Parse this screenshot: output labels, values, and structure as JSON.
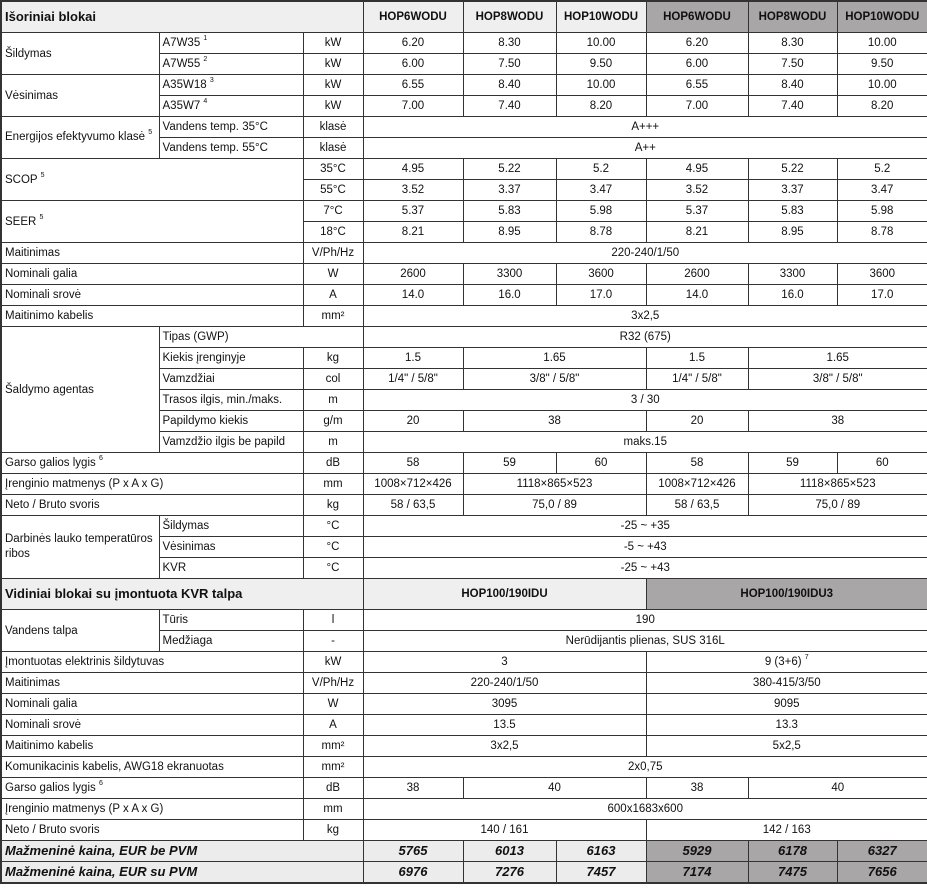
{
  "outdoor": {
    "title": "Išoriniai blokai",
    "models": [
      "HOP6WODU",
      "HOP8WODU",
      "HOP10WODU",
      "HOP6WODU",
      "HOP8WODU",
      "HOP10WODU"
    ],
    "heating": {
      "label": "Šildymas",
      "rows": [
        {
          "cond": "A7W35",
          "note": "1",
          "unit": "kW",
          "values": [
            "6.20",
            "8.30",
            "10.00",
            "6.20",
            "8.30",
            "10.00"
          ]
        },
        {
          "cond": "A7W55",
          "note": "2",
          "unit": "kW",
          "values": [
            "6.00",
            "7.50",
            "9.50",
            "6.00",
            "7.50",
            "9.50"
          ]
        }
      ]
    },
    "cooling": {
      "label": "Vėsinimas",
      "rows": [
        {
          "cond": "A35W18",
          "note": "3",
          "unit": "kW",
          "values": [
            "6.55",
            "8.40",
            "10.00",
            "6.55",
            "8.40",
            "10.00"
          ]
        },
        {
          "cond": "A35W7",
          "note": "4",
          "unit": "kW",
          "values": [
            "7.00",
            "7.40",
            "8.20",
            "7.00",
            "7.40",
            "8.20"
          ]
        }
      ]
    },
    "energy_class": {
      "label": "Energijos efektyvumo klasė",
      "note": "5",
      "rows": [
        {
          "cond": "Vandens temp. 35°C",
          "unit": "klasė",
          "value": "A+++"
        },
        {
          "cond": "Vandens temp. 55°C",
          "unit": "klasė",
          "value": "A++"
        }
      ]
    },
    "scop": {
      "label": "SCOP",
      "note": "5",
      "rows": [
        {
          "unit": "35°C",
          "values": [
            "4.95",
            "5.22",
            "5.2",
            "4.95",
            "5.22",
            "5.2"
          ]
        },
        {
          "unit": "55°C",
          "values": [
            "3.52",
            "3.37",
            "3.47",
            "3.52",
            "3.37",
            "3.47"
          ]
        }
      ]
    },
    "seer": {
      "label": "SEER",
      "note": "5",
      "rows": [
        {
          "unit": "7°C",
          "values": [
            "5.37",
            "5.83",
            "5.98",
            "5.37",
            "5.83",
            "5.98"
          ]
        },
        {
          "unit": "18°C",
          "values": [
            "8.21",
            "8.95",
            "8.78",
            "8.21",
            "8.95",
            "8.78"
          ]
        }
      ]
    },
    "power_supply": {
      "label": "Maitinimas",
      "unit": "V/Ph/Hz",
      "value": "220-240/1/50"
    },
    "nominal_power": {
      "label": "Nominali galia",
      "unit": "W",
      "values": [
        "2600",
        "3300",
        "3600",
        "2600",
        "3300",
        "3600"
      ]
    },
    "nominal_current": {
      "label": "Nominali srovė",
      "unit": "A",
      "values": [
        "14.0",
        "16.0",
        "17.0",
        "14.0",
        "16.0",
        "17.0"
      ]
    },
    "power_cable": {
      "label": "Maitinimo kabelis",
      "unit": "mm²",
      "value": "3x2,5"
    },
    "refrigerant": {
      "label": "Šaldymo agentas",
      "type": {
        "label": "Tipas (GWP)",
        "value": "R32 (675)"
      },
      "amount": {
        "label": "Kiekis įrenginyje",
        "unit": "kg",
        "values": [
          "1.5",
          "1.65",
          "1.5",
          "1.65"
        ]
      },
      "pipes": {
        "label": "Vamzdžiai",
        "unit": "col",
        "values": [
          "1/4\" / 5/8\"",
          "3/8\" / 5/8\"",
          "1/4\" / 5/8\"",
          "3/8\" / 5/8\""
        ]
      },
      "line_length": {
        "label": "Trasos ilgis, min./maks.",
        "unit": "m",
        "value": "3 / 30"
      },
      "additional": {
        "label": "Papildymo kiekis",
        "unit": "g/m",
        "values": [
          "20",
          "38",
          "20",
          "38"
        ]
      },
      "pipe_no_add": {
        "label": "Vamzdžio ilgis be papild",
        "unit": "m",
        "value": "maks.15"
      }
    },
    "sound": {
      "label": "Garso galios lygis",
      "note": "6",
      "unit": "dB",
      "values": [
        "58",
        "59",
        "60",
        "58",
        "59",
        "60"
      ]
    },
    "dimensions": {
      "label": "Įrenginio matmenys (P x A x G)",
      "unit": "mm",
      "values": [
        "1008×712×426",
        "1118×865×523",
        "1008×712×426",
        "1118×865×523"
      ]
    },
    "weight": {
      "label": "Neto / Bruto svoris",
      "unit": "kg",
      "values": [
        "58 / 63,5",
        "75,0 / 89",
        "58 / 63,5",
        "75,0 / 89"
      ]
    },
    "temp_range": {
      "label": "Darbinės lauko temperatūros ribos",
      "rows": [
        {
          "cond": "Šildymas",
          "unit": "°C",
          "value": "-25 ~ +35"
        },
        {
          "cond": "Vėsinimas",
          "unit": "°C",
          "value": "-5 ~ +43"
        },
        {
          "cond": "KVR",
          "unit": "°C",
          "value": "-25 ~ +43"
        }
      ]
    }
  },
  "indoor": {
    "title": "Vidiniai blokai su įmontuota KVR talpa",
    "models": [
      "HOP100/190IDU",
      "HOP100/190IDU3"
    ],
    "tank": {
      "label": "Vandens talpa",
      "rows": [
        {
          "cond": "Tūris",
          "unit": "l",
          "value": "190"
        },
        {
          "cond": "Medžiaga",
          "unit": "-",
          "value": "Nerūdijantis plienas, SUS 316L"
        }
      ]
    },
    "heater": {
      "label": "Įmontuotas elektrinis šildytuvas",
      "unit": "kW",
      "values": [
        "3",
        "9 (3+6)"
      ],
      "note": "7"
    },
    "power_supply": {
      "label": "Maitinimas",
      "unit": "V/Ph/Hz",
      "values": [
        "220-240/1/50",
        "380-415/3/50"
      ]
    },
    "nominal_power": {
      "label": "Nominali galia",
      "unit": "W",
      "values": [
        "3095",
        "9095"
      ]
    },
    "nominal_current": {
      "label": "Nominali srovė",
      "unit": "A",
      "values": [
        "13.5",
        "13.3"
      ]
    },
    "power_cable": {
      "label": "Maitinimo kabelis",
      "unit": "mm²",
      "values": [
        "3x2,5",
        "5x2,5"
      ]
    },
    "comm_cable": {
      "label": "Komunikacinis kabelis, AWG18  ekranuotas",
      "unit": "mm²",
      "value": "2x0,75"
    },
    "sound": {
      "label": "Garso galios lygis",
      "note": "6",
      "unit": "dB",
      "values": [
        "38",
        "40",
        "38",
        "40"
      ]
    },
    "dimensions": {
      "label": "Įrenginio matmenys (P x A x G)",
      "unit": "mm",
      "value": "600x1683x600"
    },
    "weight": {
      "label": "Neto / Bruto svoris",
      "unit": "kg",
      "values": [
        "140 / 161",
        "142 / 163"
      ]
    }
  },
  "prices": [
    {
      "label": "Mažmeninė kaina, EUR be PVM",
      "values": [
        "5765",
        "6013",
        "6163",
        "5929",
        "6178",
        "6327"
      ]
    },
    {
      "label": "Mažmeninė kaina, EUR su PVM",
      "values": [
        "6976",
        "7276",
        "7457",
        "7174",
        "7475",
        "7656"
      ]
    }
  ],
  "colors": {
    "header_light": "#efefef",
    "header_dark": "#a8a6a6",
    "border": "#333333"
  }
}
